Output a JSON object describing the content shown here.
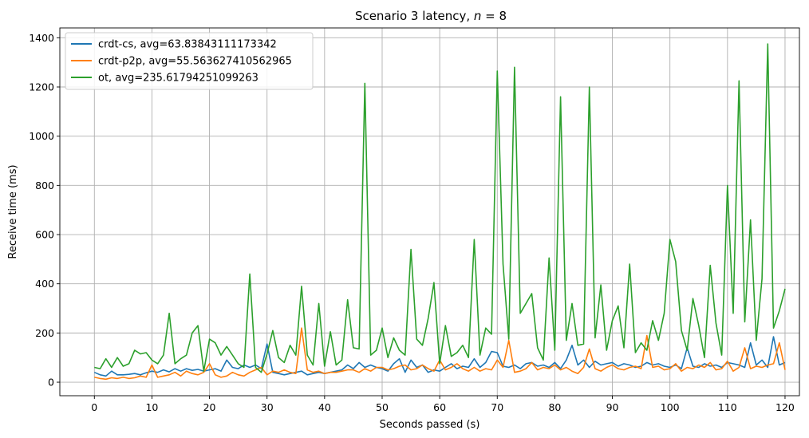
{
  "chart_data": {
    "type": "line",
    "title": "Scenario 3 latency, n = 8",
    "title_parts": {
      "prefix": "Scenario 3 latency, ",
      "italic": "n",
      "suffix": " = 8"
    },
    "xlabel": "Seconds passed (s)",
    "ylabel": "Receive time (ms)",
    "xlim": [
      -6,
      122.5
    ],
    "ylim": [
      -55,
      1440
    ],
    "xticks": [
      0,
      10,
      20,
      30,
      40,
      50,
      60,
      70,
      80,
      90,
      100,
      110,
      120
    ],
    "xtick_labels": [
      "0",
      "10",
      "20",
      "30",
      "40",
      "50",
      "60",
      "70",
      "80",
      "90",
      "100",
      "110",
      "120"
    ],
    "yticks": [
      0,
      200,
      400,
      600,
      800,
      1000,
      1200,
      1400
    ],
    "ytick_labels": [
      "0",
      "200",
      "400",
      "600",
      "800",
      "1000",
      "1200",
      "1400"
    ],
    "grid": true,
    "legend_position": "upper-left",
    "series": [
      {
        "name": "crdt-cs, avg=63.83843111173342",
        "color": "#1f77b4",
        "x": [
          0,
          1,
          2,
          3,
          4,
          5,
          6,
          7,
          8,
          9,
          10,
          11,
          12,
          13,
          14,
          15,
          16,
          17,
          18,
          19,
          20,
          21,
          22,
          23,
          24,
          25,
          26,
          27,
          28,
          29,
          30,
          31,
          32,
          33,
          34,
          35,
          36,
          37,
          38,
          39,
          40,
          41,
          42,
          43,
          44,
          45,
          46,
          47,
          48,
          49,
          50,
          51,
          52,
          53,
          54,
          55,
          56,
          57,
          58,
          59,
          60,
          61,
          62,
          63,
          64,
          65,
          66,
          67,
          68,
          69,
          70,
          71,
          72,
          73,
          74,
          75,
          76,
          77,
          78,
          79,
          80,
          81,
          82,
          83,
          84,
          85,
          86,
          87,
          88,
          89,
          90,
          91,
          92,
          93,
          94,
          95,
          96,
          97,
          98,
          99,
          100,
          101,
          102,
          103,
          104,
          105,
          106,
          107,
          108,
          109,
          110,
          111,
          112,
          113,
          114,
          115,
          116,
          117,
          118,
          119,
          120
        ],
        "y": [
          40,
          30,
          25,
          45,
          30,
          30,
          32,
          35,
          30,
          38,
          45,
          40,
          50,
          42,
          55,
          45,
          55,
          48,
          52,
          45,
          50,
          55,
          45,
          90,
          60,
          55,
          70,
          60,
          70,
          55,
          155,
          40,
          35,
          30,
          35,
          40,
          45,
          30,
          35,
          40,
          35,
          40,
          45,
          50,
          70,
          55,
          80,
          60,
          70,
          60,
          55,
          45,
          75,
          95,
          40,
          90,
          60,
          70,
          40,
          50,
          45,
          60,
          75,
          55,
          65,
          60,
          95,
          60,
          80,
          125,
          120,
          65,
          60,
          70,
          55,
          75,
          80,
          65,
          70,
          60,
          80,
          55,
          90,
          150,
          70,
          90,
          60,
          85,
          70,
          75,
          80,
          65,
          75,
          70,
          60,
          65,
          80,
          70,
          75,
          65,
          60,
          70,
          55,
          140,
          65,
          60,
          75,
          65,
          70,
          60,
          80,
          75,
          70,
          60,
          160,
          70,
          90,
          60,
          185,
          70,
          80
        ]
      },
      {
        "name": "crdt-p2p, avg=55.563627410562965",
        "color": "#ff7f0e",
        "x": [
          0,
          1,
          2,
          3,
          4,
          5,
          6,
          7,
          8,
          9,
          10,
          11,
          12,
          13,
          14,
          15,
          16,
          17,
          18,
          19,
          20,
          21,
          22,
          23,
          24,
          25,
          26,
          27,
          28,
          29,
          30,
          31,
          32,
          33,
          34,
          35,
          36,
          37,
          38,
          39,
          40,
          41,
          42,
          43,
          44,
          45,
          46,
          47,
          48,
          49,
          50,
          51,
          52,
          53,
          54,
          55,
          56,
          57,
          58,
          59,
          60,
          61,
          62,
          63,
          64,
          65,
          66,
          67,
          68,
          69,
          70,
          71,
          72,
          73,
          74,
          75,
          76,
          77,
          78,
          79,
          80,
          81,
          82,
          83,
          84,
          85,
          86,
          87,
          88,
          89,
          90,
          91,
          92,
          93,
          94,
          95,
          96,
          97,
          98,
          99,
          100,
          101,
          102,
          103,
          104,
          105,
          106,
          107,
          108,
          109,
          110,
          111,
          112,
          113,
          114,
          115,
          116,
          117,
          118,
          119,
          120
        ],
        "y": [
          20,
          15,
          12,
          18,
          15,
          20,
          15,
          18,
          25,
          20,
          70,
          20,
          25,
          30,
          40,
          25,
          45,
          35,
          30,
          40,
          75,
          30,
          20,
          25,
          40,
          30,
          25,
          40,
          50,
          60,
          30,
          45,
          40,
          50,
          40,
          35,
          220,
          50,
          40,
          45,
          35,
          40,
          40,
          45,
          50,
          50,
          40,
          55,
          45,
          60,
          60,
          50,
          55,
          65,
          70,
          50,
          55,
          70,
          55,
          45,
          90,
          50,
          60,
          75,
          55,
          45,
          60,
          45,
          55,
          50,
          90,
          60,
          170,
          40,
          45,
          55,
          80,
          50,
          60,
          55,
          70,
          50,
          60,
          45,
          35,
          60,
          135,
          55,
          45,
          60,
          70,
          55,
          50,
          60,
          65,
          55,
          190,
          60,
          65,
          50,
          55,
          75,
          45,
          60,
          55,
          70,
          60,
          80,
          50,
          55,
          85,
          45,
          60,
          140,
          55,
          65,
          60,
          70,
          75,
          160,
          50
        ]
      },
      {
        "name": "ot, avg=235.61794251099263",
        "color": "#2ca02c",
        "x": [
          0,
          1,
          2,
          3,
          4,
          5,
          6,
          7,
          8,
          9,
          10,
          11,
          12,
          13,
          14,
          15,
          16,
          17,
          18,
          19,
          20,
          21,
          22,
          23,
          24,
          25,
          26,
          27,
          28,
          29,
          30,
          31,
          32,
          33,
          34,
          35,
          36,
          37,
          38,
          39,
          40,
          41,
          42,
          43,
          44,
          45,
          46,
          47,
          48,
          49,
          50,
          51,
          52,
          53,
          54,
          55,
          56,
          57,
          58,
          59,
          60,
          61,
          62,
          63,
          64,
          65,
          66,
          67,
          68,
          69,
          70,
          71,
          72,
          73,
          74,
          75,
          76,
          77,
          78,
          79,
          80,
          81,
          82,
          83,
          84,
          85,
          86,
          87,
          88,
          89,
          90,
          91,
          92,
          93,
          94,
          95,
          96,
          97,
          98,
          99,
          100,
          101,
          102,
          103,
          104,
          105,
          106,
          107,
          108,
          109,
          110,
          111,
          112,
          113,
          114,
          115,
          116,
          117,
          118,
          119,
          120
        ],
        "y": [
          60,
          55,
          95,
          60,
          100,
          65,
          75,
          130,
          115,
          120,
          90,
          75,
          110,
          280,
          75,
          95,
          110,
          200,
          230,
          45,
          175,
          160,
          110,
          145,
          110,
          75,
          60,
          440,
          60,
          40,
          115,
          210,
          100,
          80,
          150,
          110,
          390,
          110,
          70,
          320,
          65,
          205,
          70,
          90,
          335,
          140,
          135,
          1215,
          110,
          130,
          220,
          100,
          180,
          130,
          110,
          540,
          175,
          150,
          260,
          405,
          75,
          230,
          105,
          120,
          150,
          100,
          580,
          110,
          220,
          195,
          1265,
          480,
          175,
          1280,
          280,
          320,
          360,
          140,
          90,
          505,
          130,
          1160,
          170,
          320,
          150,
          155,
          1200,
          180,
          395,
          130,
          250,
          310,
          140,
          480,
          120,
          160,
          130,
          250,
          170,
          280,
          580,
          490,
          210,
          130,
          340,
          230,
          100,
          475,
          240,
          110,
          800,
          280,
          1225,
          245,
          660,
          170,
          420,
          1375,
          220,
          290,
          380
        ]
      }
    ]
  }
}
